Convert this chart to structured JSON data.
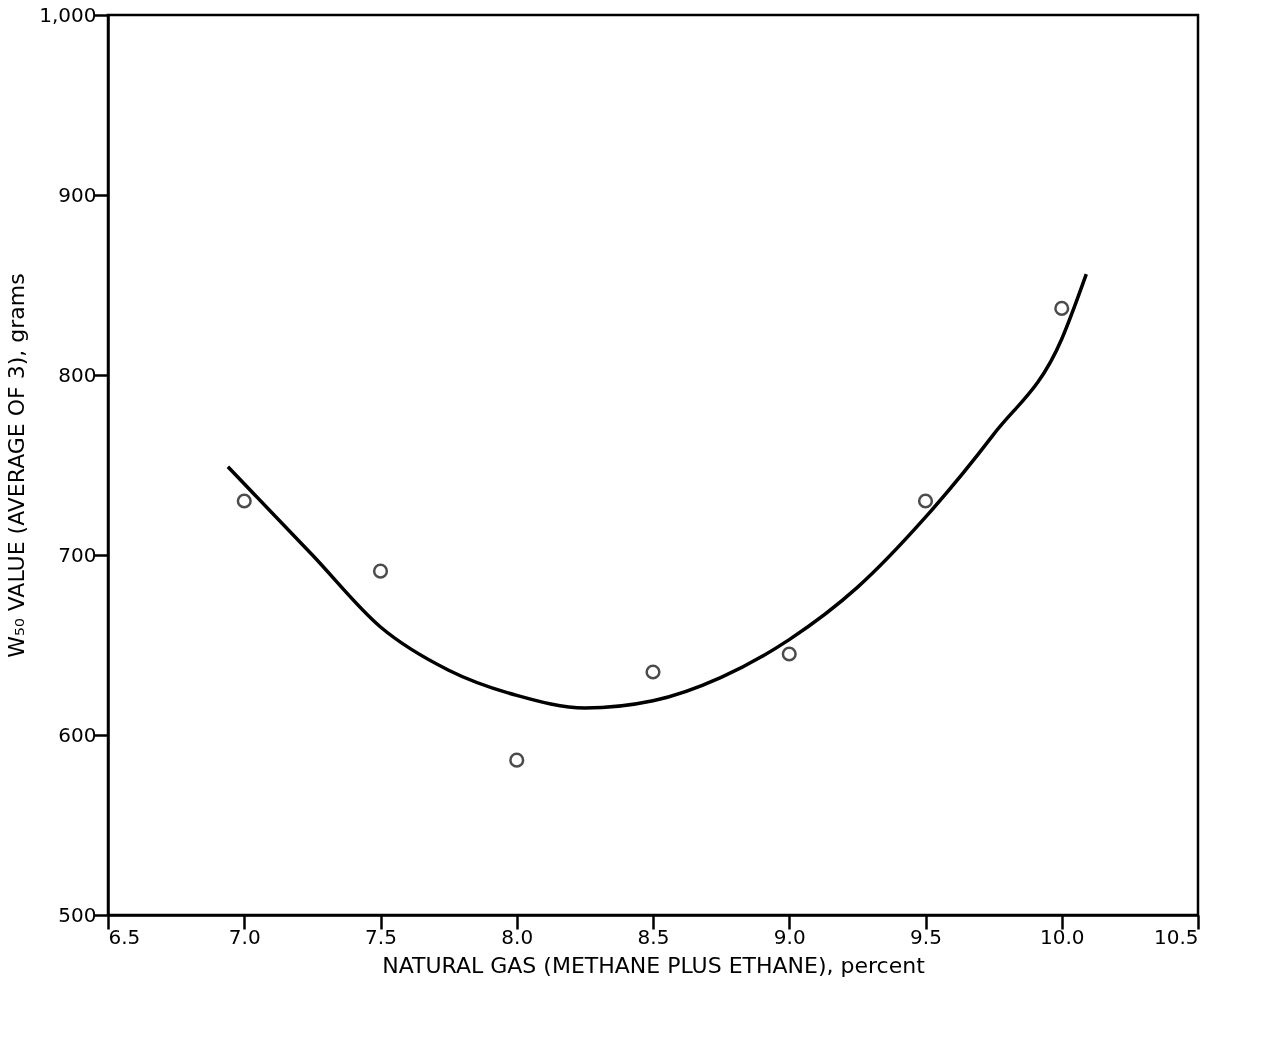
{
  "chart_data": {
    "type": "scatter",
    "xlabel": "NATURAL GAS (METHANE PLUS ETHANE), percent",
    "ylabel": "W₅₀ VALUE (AVERAGE OF 3), grams",
    "xlim": [
      6.5,
      10.5
    ],
    "xticks": [
      {
        "value": 6.5,
        "label": "6.5"
      },
      {
        "value": 7.0,
        "label": "7.0"
      },
      {
        "value": 7.5,
        "label": "7.5"
      },
      {
        "value": 8.0,
        "label": "8.0"
      },
      {
        "value": 8.5,
        "label": "8.5"
      },
      {
        "value": 9.0,
        "label": "9.0"
      },
      {
        "value": 9.5,
        "label": "9.5"
      },
      {
        "value": 10.0,
        "label": "10.0"
      },
      {
        "value": 10.5,
        "label": "10.5"
      }
    ],
    "ylim": [
      500,
      1000
    ],
    "yticks": [
      500,
      600,
      700,
      800,
      900,
      {
        "value": 1000,
        "label": "1,000"
      }
    ],
    "grid": false,
    "series": [
      {
        "marker": "circle",
        "color": "#000000",
        "x": [
          7.0,
          7.5,
          8.0,
          8.5,
          9.0,
          9.5,
          10.0
        ],
        "values": [
          730,
          691,
          586,
          635,
          645,
          730,
          837
        ]
      },
      {
        "type": "line",
        "line_style": "solid",
        "color": "#000000",
        "x": [
          6.94,
          7.25,
          7.5,
          7.75,
          8.0,
          8.25,
          8.5,
          8.75,
          9.0,
          9.25,
          9.5,
          9.75,
          10.0,
          10.09
        ],
        "values": [
          749,
          700,
          660,
          636,
          622,
          615,
          619,
          632,
          653,
          682,
          721,
          767,
          820,
          856
        ]
      }
    ]
  }
}
